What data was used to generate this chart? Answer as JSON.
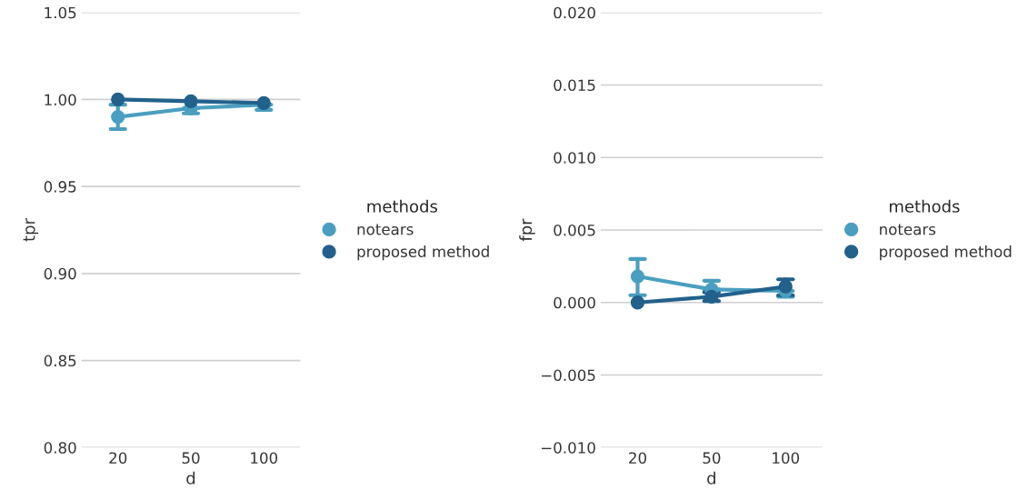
{
  "chart_data": [
    {
      "type": "line",
      "xlabel": "d",
      "ylabel": "tpr",
      "legend_title": "methods",
      "legend": "right",
      "grid": "y",
      "marker": "circle",
      "line_style": "solid",
      "categories": [
        "20",
        "50",
        "100"
      ],
      "ylim": [
        0.8,
        1.05
      ],
      "yticks": [
        {
          "value": 0.8,
          "label": "0.80"
        },
        {
          "value": 0.85,
          "label": "0.85"
        },
        {
          "value": 0.9,
          "label": "0.90"
        },
        {
          "value": 0.95,
          "label": "0.95"
        },
        {
          "value": 1.0,
          "label": "1.00"
        },
        {
          "value": 1.05,
          "label": "1.05"
        }
      ],
      "series": [
        {
          "name": "notears",
          "color": "#4a9fc0",
          "values": [
            0.99,
            0.995,
            0.997
          ],
          "errors": [
            [
              0.983,
              0.997
            ],
            [
              0.992,
              0.995
            ],
            [
              0.994,
              0.997
            ]
          ]
        },
        {
          "name": "proposed method",
          "color": "#22618c",
          "values": [
            1.0,
            0.999,
            0.998
          ],
          "errors": [
            null,
            null,
            null
          ]
        }
      ]
    },
    {
      "type": "line",
      "xlabel": "d",
      "ylabel": "fpr",
      "legend_title": "methods",
      "legend": "right",
      "grid": "y",
      "marker": "circle",
      "line_style": "solid",
      "categories": [
        "20",
        "50",
        "100"
      ],
      "ylim": [
        -0.01,
        0.02
      ],
      "yticks": [
        {
          "value": -0.01,
          "label": "−0.010"
        },
        {
          "value": -0.005,
          "label": "−0.005"
        },
        {
          "value": 0.0,
          "label": "0.000"
        },
        {
          "value": 0.005,
          "label": "0.005"
        },
        {
          "value": 0.01,
          "label": "0.010"
        },
        {
          "value": 0.015,
          "label": "0.015"
        },
        {
          "value": 0.02,
          "label": "0.020"
        }
      ],
      "series": [
        {
          "name": "notears",
          "color": "#4a9fc0",
          "values": [
            0.0018,
            0.0009,
            0.0008
          ],
          "errors": [
            [
              0.0005,
              0.003
            ],
            [
              0.0009,
              0.0015
            ],
            [
              0.0004,
              0.0008
            ]
          ]
        },
        {
          "name": "proposed method",
          "color": "#22618c",
          "values": [
            0.0,
            0.0004,
            0.0011
          ],
          "errors": [
            null,
            [
              0.0001,
              0.0007
            ],
            [
              0.0005,
              0.0016
            ]
          ]
        }
      ]
    }
  ]
}
